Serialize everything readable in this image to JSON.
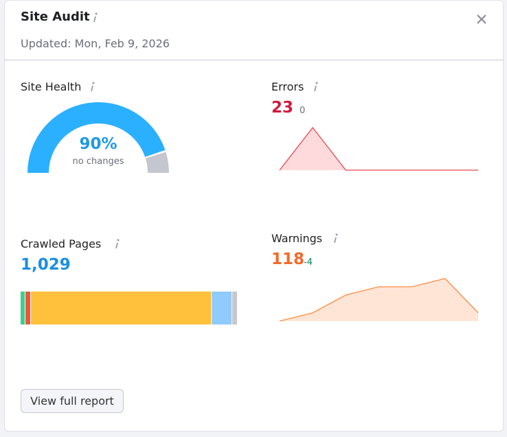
{
  "header": {
    "title": "Site Audit",
    "updated": "Updated: Mon, Feb 9, 2026"
  },
  "site_health": {
    "label": "Site Health",
    "value": 90,
    "value_label": "90%",
    "note": "no changes",
    "color": "#2bb0ff",
    "rest_color": "#c4c7cf"
  },
  "errors": {
    "label": "Errors",
    "value": 23,
    "change": 0,
    "trend": [
      0,
      62,
      0,
      0,
      0,
      0,
      0
    ],
    "line_color": "#e8434b",
    "fill_color": "#ffdadd"
  },
  "crawled_pages": {
    "label": "Crawled Pages",
    "value": 1029,
    "value_label": "1,029",
    "segments": [
      {
        "value": 20,
        "color": "#3ecf8e"
      },
      {
        "value": 23,
        "color": "#f0543b"
      },
      {
        "value": 868,
        "color": "#ffc13b"
      },
      {
        "value": 95,
        "color": "#8fcbff"
      },
      {
        "value": 23,
        "color": "#c4c7cf"
      }
    ]
  },
  "warnings": {
    "label": "Warnings",
    "value": 118,
    "change": -4,
    "trend": [
      0,
      12,
      38,
      50,
      50,
      62,
      12
    ],
    "line_color": "#ff8c42",
    "fill_color": "#ffe5d6"
  },
  "button": {
    "label": "View full report"
  }
}
